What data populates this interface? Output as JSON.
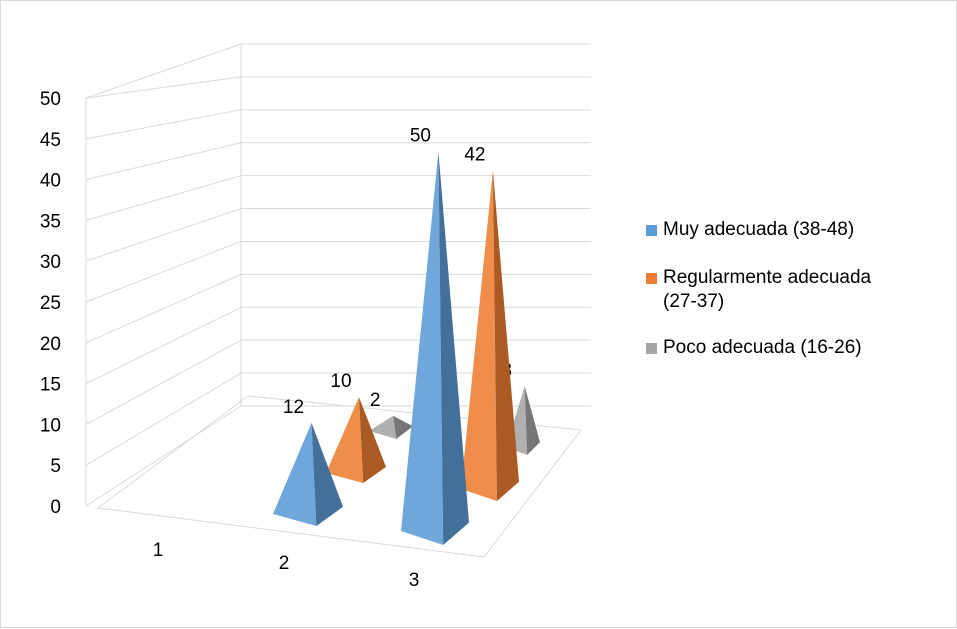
{
  "chart_data": {
    "type": "bar",
    "shape": "pyramid-3d",
    "title": "",
    "xlabel": "",
    "ylabel": "",
    "ylim": [
      0,
      50
    ],
    "yticks": [
      "0",
      "5",
      "10",
      "15",
      "20",
      "25",
      "30",
      "35",
      "40",
      "45",
      "50"
    ],
    "categories": [
      "1",
      "2",
      "3"
    ],
    "series": [
      {
        "name": "Muy adecuada (38-48)",
        "color": "#5b9bd5",
        "values": [
          null,
          12,
          50
        ]
      },
      {
        "name": "Regularmente adecuada  (27-37)",
        "color": "#ed7d31",
        "values": [
          null,
          10,
          42
        ]
      },
      {
        "name": "Poco adecuada (16-26)",
        "color": "#a5a5a5",
        "values": [
          null,
          2,
          8
        ]
      }
    ],
    "grid": true,
    "legend_position": "right"
  }
}
